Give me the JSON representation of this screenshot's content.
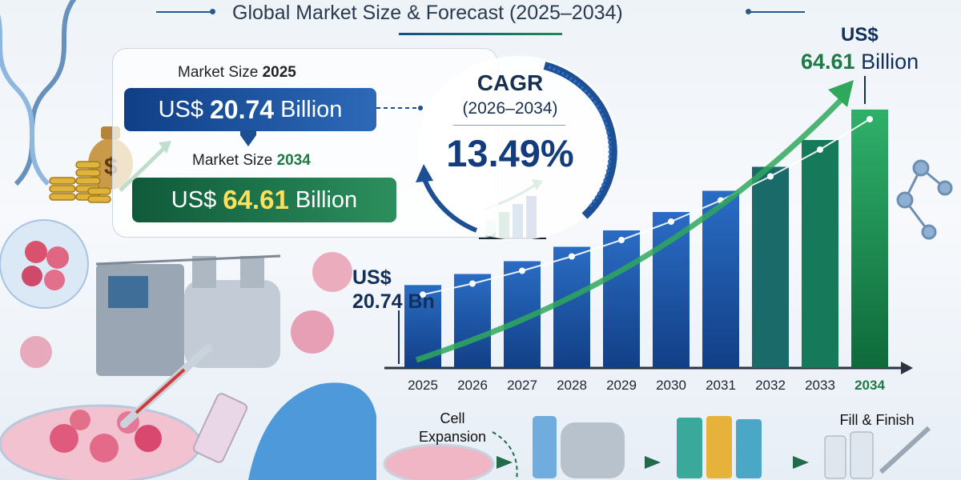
{
  "title": "Global Market Size & Forecast (2025–2034)",
  "market_2025": {
    "label": "Market Size",
    "year": "2025",
    "prefix": "US$",
    "value": "20.74",
    "unit": "Billion"
  },
  "market_2034": {
    "label": "Market Size",
    "year": "2034",
    "prefix": "US$",
    "value": "64.61",
    "unit": "Billion"
  },
  "cagr": {
    "title": "CAGR",
    "range": "(2026–2034)",
    "value": "13.49%"
  },
  "chart_start_label": {
    "prefix": "US$",
    "value": "20.74 Bn"
  },
  "chart_end_label": {
    "prefix": "US$",
    "value": "64.61",
    "unit": "Billion"
  },
  "process": {
    "cell_line1": "Cell",
    "cell_line2": "Expansion",
    "fill_finish": "Fill & Finish"
  },
  "colors": {
    "bar_blue": "#123f86",
    "bar_green": "#1b8a4d",
    "accent_green": "#1d7a45",
    "navy": "#12305a"
  },
  "chart_data": {
    "type": "bar",
    "categories": [
      "2025",
      "2026",
      "2027",
      "2028",
      "2029",
      "2030",
      "2031",
      "2032",
      "2033",
      "2034"
    ],
    "values": [
      20.74,
      23.5,
      26.7,
      30.3,
      34.4,
      39.0,
      44.3,
      50.3,
      57.0,
      64.61
    ],
    "title": "Global Market Size & Forecast (2025–2034)",
    "xlabel": "",
    "ylabel": "",
    "ylim": [
      0,
      70
    ],
    "grid": false,
    "legend": "none",
    "trend_line": true,
    "highlight_last": true
  }
}
